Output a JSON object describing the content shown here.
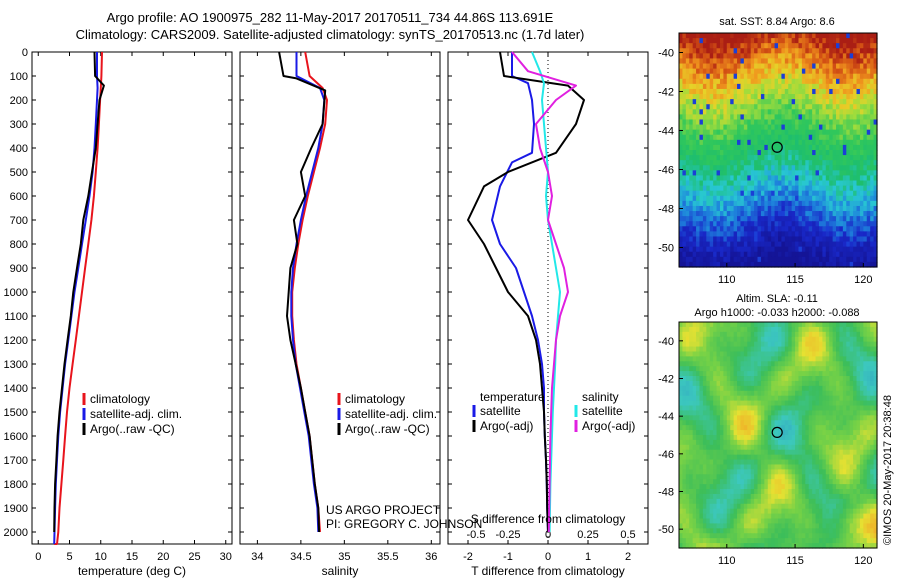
{
  "header": {
    "title_line1": "Argo profile: AO 1900975_282 11-May-2017 20170511_734 44.86S 113.691E",
    "title_line2": "Climatology: CARS2009. Satellite-adjusted climatology: synTS_20170513.nc (1.7d later)"
  },
  "colors": {
    "climatology": "#e8141c",
    "satellite": "#1a1ae6",
    "argo": "#000000",
    "satellite_salinity": "#22e8e8",
    "argo_adj_salinity": "#e020e0"
  },
  "chart_data": [
    {
      "type": "line",
      "name": "temperature-profile",
      "xlabel": "temperature (deg C)",
      "ylabel": "",
      "xlim": [
        -1,
        31
      ],
      "ylim": [
        2050,
        0
      ],
      "xticks": [
        0,
        5,
        10,
        15,
        20,
        25,
        30
      ],
      "yticks": [
        0,
        100,
        200,
        300,
        400,
        500,
        600,
        700,
        800,
        900,
        1000,
        1100,
        1200,
        1300,
        1400,
        1500,
        1600,
        1700,
        1800,
        1900,
        2000
      ],
      "legend": {
        "position": "lower-center",
        "entries": [
          "climatology",
          "satellite-adj. clim.",
          "Argo(..raw -QC)"
        ]
      },
      "series": [
        {
          "name": "climatology",
          "color": "#e8141c",
          "x": [
            10.2,
            10.1,
            10.0,
            9.9,
            9.7,
            9.5,
            9.2,
            8.9,
            8.5,
            8.0,
            7.5,
            7.0,
            6.5,
            6.0,
            5.5,
            5.0,
            4.6,
            4.3,
            4.0,
            3.7,
            3.4,
            3.2,
            3.0,
            2.9,
            2.8,
            2.7,
            2.65,
            2.6,
            2.55
          ],
          "y": [
            0,
            100,
            150,
            200,
            300,
            400,
            500,
            600,
            700,
            800,
            900,
            1000,
            1100,
            1200,
            1300,
            1400,
            1500,
            1600,
            1700,
            1800,
            1900,
            2000,
            2050,
            2050,
            2050,
            2050,
            2050,
            2050,
            2050
          ]
        },
        {
          "name": "satellite-adj. clim.",
          "color": "#1a1ae6",
          "x": [
            9.4,
            9.4,
            9.5,
            9.4,
            9.2,
            9.0,
            8.7,
            8.2,
            7.6,
            7.0,
            6.4,
            5.8,
            5.3,
            4.8,
            4.3,
            3.9,
            3.5,
            3.2,
            3.0,
            2.8,
            2.7,
            2.6,
            2.55
          ],
          "y": [
            0,
            100,
            150,
            200,
            300,
            400,
            500,
            600,
            700,
            800,
            900,
            1000,
            1100,
            1200,
            1300,
            1400,
            1500,
            1600,
            1700,
            1800,
            1900,
            2000,
            2050
          ]
        },
        {
          "name": "Argo(..raw -QC)",
          "color": "#000000",
          "x": [
            9.0,
            9.1,
            10.5,
            9.8,
            9.5,
            9.2,
            8.6,
            8.0,
            7.2,
            6.8,
            6.2,
            5.6,
            5.2,
            4.7,
            4.2,
            3.8,
            3.4,
            3.1,
            2.9,
            2.7,
            2.6,
            2.55
          ],
          "y": [
            0,
            100,
            140,
            200,
            300,
            400,
            500,
            600,
            700,
            800,
            900,
            1000,
            1100,
            1200,
            1300,
            1400,
            1500,
            1600,
            1700,
            1800,
            1900,
            2000
          ]
        }
      ]
    },
    {
      "type": "line",
      "name": "salinity-profile",
      "xlabel": "salinity",
      "ylabel": "",
      "xlim": [
        33.8,
        36.1
      ],
      "ylim": [
        2050,
        0
      ],
      "xticks": [
        34,
        34.5,
        35,
        35.5,
        36
      ],
      "legend": {
        "position": "lower-center",
        "entries": [
          "climatology",
          "satellite-adj. clim.",
          "Argo(..raw -QC)"
        ]
      },
      "series": [
        {
          "name": "climatology",
          "color": "#e8141c",
          "x": [
            34.55,
            34.6,
            34.75,
            34.8,
            34.78,
            34.72,
            34.65,
            34.58,
            34.52,
            34.47,
            34.43,
            34.4,
            34.4,
            34.42,
            34.45,
            34.5,
            34.55,
            34.6,
            34.63,
            34.66,
            34.7,
            34.72
          ],
          "y": [
            0,
            100,
            150,
            200,
            300,
            400,
            500,
            600,
            700,
            800,
            900,
            1000,
            1100,
            1200,
            1300,
            1400,
            1500,
            1600,
            1700,
            1800,
            1900,
            2000
          ]
        },
        {
          "name": "satellite-adj. clim.",
          "color": "#1a1ae6",
          "x": [
            34.45,
            34.45,
            34.72,
            34.77,
            34.75,
            34.7,
            34.63,
            34.56,
            34.5,
            34.45,
            34.41,
            34.39,
            34.39,
            34.41,
            34.44,
            34.49,
            34.54,
            34.59,
            34.62,
            34.65,
            34.69,
            34.7
          ],
          "y": [
            0,
            100,
            150,
            200,
            300,
            400,
            500,
            600,
            700,
            800,
            900,
            1000,
            1100,
            1200,
            1300,
            1400,
            1500,
            1600,
            1700,
            1800,
            1900,
            2000
          ]
        },
        {
          "name": "Argo(..raw -QC)",
          "color": "#000000",
          "x": [
            34.25,
            34.3,
            34.45,
            34.78,
            34.75,
            34.62,
            34.5,
            34.55,
            34.42,
            34.46,
            34.38,
            34.36,
            34.34,
            34.38,
            34.44,
            34.5,
            34.55,
            34.6,
            34.63,
            34.66,
            34.7,
            34.71
          ],
          "y": [
            0,
            100,
            110,
            160,
            300,
            400,
            500,
            600,
            700,
            800,
            900,
            1000,
            1100,
            1200,
            1300,
            1400,
            1500,
            1600,
            1700,
            1800,
            1900,
            2000
          ]
        }
      ]
    },
    {
      "type": "line",
      "name": "difference-profile",
      "xlabel": "T difference from climatology",
      "xlabel_top": "S difference from climatology",
      "xlim": [
        -2.5,
        2.5
      ],
      "ylim": [
        2050,
        0
      ],
      "xticks": [
        -2,
        -1,
        0,
        1,
        2
      ],
      "xticks_s": [
        "-0.5",
        "-0.25",
        "0",
        "0.25",
        "0.5"
      ],
      "legend": {
        "position": "lower-center",
        "temperature_heading": "temperature",
        "salinity_heading": "salinity",
        "entries": [
          "satellite",
          "Argo(-adj)",
          "satellite",
          "Argo(-adj)"
        ]
      },
      "series": [
        {
          "name": "satellite",
          "variable": "temperature",
          "color": "#1a1ae6",
          "x": [
            -0.9,
            -0.9,
            -0.5,
            -0.4,
            -0.35,
            -0.4,
            -0.9,
            -1.2,
            -1.4,
            -1.2,
            -0.8,
            -0.6,
            -0.4,
            -0.25,
            -0.15,
            -0.1,
            -0.1,
            -0.08,
            -0.05,
            -0.03,
            -0.02,
            0.0
          ],
          "y": [
            0,
            100,
            130,
            200,
            300,
            420,
            460,
            560,
            700,
            800,
            900,
            1000,
            1100,
            1200,
            1300,
            1400,
            1500,
            1600,
            1700,
            1800,
            1900,
            2000
          ]
        },
        {
          "name": "Argo(-adj)",
          "variable": "temperature",
          "color": "#000000",
          "x": [
            -1.2,
            -1.1,
            0.5,
            0.9,
            0.7,
            0.2,
            -1.0,
            -1.6,
            -2.0,
            -1.6,
            -1.3,
            -1.0,
            -0.5,
            -0.3,
            -0.2,
            -0.15,
            -0.1,
            -0.08,
            -0.05,
            -0.03,
            -0.02,
            0.0
          ],
          "y": [
            0,
            100,
            140,
            200,
            300,
            420,
            500,
            560,
            700,
            800,
            900,
            1000,
            1100,
            1200,
            1300,
            1400,
            1500,
            1600,
            1700,
            1800,
            1900,
            2000
          ]
        },
        {
          "name": "satellite",
          "variable": "salinity",
          "color": "#22e8e8",
          "x": [
            -0.4,
            -0.2,
            -0.1,
            -0.15,
            -0.1,
            -0.05,
            0.0,
            -0.05,
            0.0,
            0.1,
            0.2,
            0.3,
            0.25,
            0.2,
            0.18,
            0.15,
            0.12,
            0.1,
            0.08,
            0.06,
            0.05,
            0.04
          ],
          "y": [
            0,
            80,
            130,
            200,
            300,
            400,
            500,
            600,
            700,
            800,
            900,
            1000,
            1100,
            1200,
            1300,
            1400,
            1500,
            1600,
            1700,
            1800,
            1900,
            2000
          ]
        },
        {
          "name": "Argo(-adj)",
          "variable": "salinity",
          "color": "#e020e0",
          "x": [
            -0.9,
            -0.5,
            0.7,
            0.2,
            -0.3,
            -0.2,
            0.0,
            0.1,
            0.0,
            0.2,
            0.4,
            0.5,
            0.3,
            0.2,
            0.15,
            0.1,
            0.08,
            0.06,
            0.05,
            0.04,
            0.03,
            0.02
          ],
          "y": [
            0,
            80,
            140,
            200,
            300,
            400,
            500,
            600,
            700,
            800,
            900,
            1000,
            1100,
            1200,
            1300,
            1400,
            1500,
            1600,
            1700,
            1800,
            1900,
            2000
          ]
        }
      ]
    },
    {
      "type": "heatmap",
      "name": "sst-map",
      "title": "sat. SST: 8.84 Argo: 8.6",
      "xlim": [
        106.5,
        121
      ],
      "ylim": [
        -51,
        -39
      ],
      "xticks": [
        110,
        115,
        120
      ],
      "yticks": [
        -40,
        -42,
        -44,
        -46,
        -48,
        -50
      ],
      "marker": {
        "x": 113.691,
        "y": -44.86
      }
    },
    {
      "type": "heatmap",
      "name": "sla-map",
      "title": "Altim. SLA: -0.11",
      "subtitle": "Argo h1000: -0.033 h2000: -0.088",
      "xlim": [
        106.5,
        121
      ],
      "ylim": [
        -51,
        -39
      ],
      "xticks": [
        110,
        115,
        120
      ],
      "yticks": [
        -40,
        -42,
        -44,
        -46,
        -48,
        -50
      ],
      "marker": {
        "x": 113.691,
        "y": -44.86
      }
    }
  ],
  "credits": {
    "project": "US ARGO PROJECT",
    "pi": "PI: GREGORY C. JOHNSON",
    "imos_stamp": "©IMOS 20-May-2017 20:38:48"
  }
}
